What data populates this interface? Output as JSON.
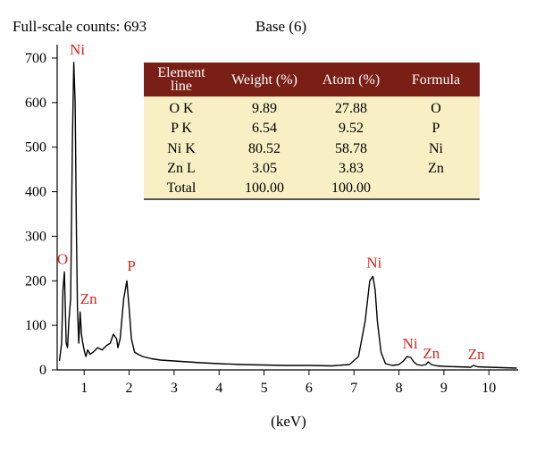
{
  "header": {
    "full_scale_counts": "Full-scale counts: 693",
    "base": "Base (6)"
  },
  "table": {
    "headers": [
      "Element line",
      "Weight (%)",
      "Atom (%)",
      "Formula"
    ],
    "rows": [
      [
        "O K",
        "9.89",
        "27.88",
        "O"
      ],
      [
        "P K",
        "6.54",
        "9.52",
        "P"
      ],
      [
        "Ni K",
        "80.52",
        "58.78",
        "Ni"
      ],
      [
        "Zn L",
        "3.05",
        "3.83",
        "Zn"
      ],
      [
        "Total",
        "100.00",
        "100.00",
        ""
      ]
    ]
  },
  "chart_data": {
    "type": "line",
    "title": "",
    "xlabel": "(keV)",
    "ylabel": "",
    "xlim": [
      0.4,
      10.65
    ],
    "ylim": [
      0,
      730
    ],
    "xticks": [
      1,
      2,
      3,
      4,
      5,
      6,
      7,
      8,
      9,
      10
    ],
    "yticks": [
      0,
      100,
      200,
      300,
      400,
      500,
      600,
      700
    ],
    "colors": {
      "line": "#000000",
      "peak_label": "#d9261c"
    },
    "series": [
      {
        "x": [
          0.45,
          0.5,
          0.53,
          0.56,
          0.58,
          0.6,
          0.63,
          0.66,
          0.7,
          0.74,
          0.77,
          0.8,
          0.83,
          0.85,
          0.88,
          0.91,
          0.94,
          0.97,
          1.01,
          1.04,
          1.08,
          1.13,
          1.2,
          1.3,
          1.4,
          1.5,
          1.58,
          1.65,
          1.72,
          1.75,
          1.8,
          1.88,
          1.95,
          2.0,
          2.05,
          2.12,
          2.2,
          2.3,
          2.5,
          2.7,
          3.0,
          3.3,
          3.6,
          4.0,
          4.5,
          5.0,
          5.5,
          6.0,
          6.5,
          6.9,
          7.1,
          7.25,
          7.35,
          7.42,
          7.47,
          7.52,
          7.6,
          7.7,
          7.85,
          8.0,
          8.1,
          8.18,
          8.26,
          8.33,
          8.4,
          8.5,
          8.6,
          8.65,
          8.72,
          8.85,
          9.0,
          9.3,
          9.6,
          9.65,
          9.75,
          10.0,
          10.3,
          10.62
        ],
        "y": [
          20,
          60,
          180,
          220,
          140,
          60,
          50,
          110,
          160,
          520,
          690,
          600,
          300,
          140,
          60,
          130,
          80,
          60,
          40,
          30,
          45,
          35,
          40,
          50,
          45,
          55,
          60,
          80,
          70,
          50,
          70,
          160,
          200,
          140,
          70,
          40,
          35,
          30,
          25,
          22,
          20,
          18,
          16,
          14,
          12,
          11,
          10,
          10,
          9,
          12,
          30,
          110,
          200,
          210,
          180,
          110,
          40,
          14,
          10,
          12,
          20,
          30,
          28,
          18,
          12,
          10,
          12,
          18,
          12,
          9,
          8,
          7,
          6,
          10,
          7,
          6,
          5,
          4
        ]
      }
    ],
    "annotations": [
      {
        "text": "O",
        "x": 0.52,
        "y": 230
      },
      {
        "text": "Ni",
        "x": 0.85,
        "y": 700
      },
      {
        "text": "Zn",
        "x": 1.1,
        "y": 140
      },
      {
        "text": "P",
        "x": 2.05,
        "y": 215
      },
      {
        "text": "Ni",
        "x": 7.45,
        "y": 222
      },
      {
        "text": "Ni",
        "x": 8.25,
        "y": 40
      },
      {
        "text": "Zn",
        "x": 8.72,
        "y": 18
      },
      {
        "text": "Zn",
        "x": 9.72,
        "y": 16
      }
    ]
  }
}
